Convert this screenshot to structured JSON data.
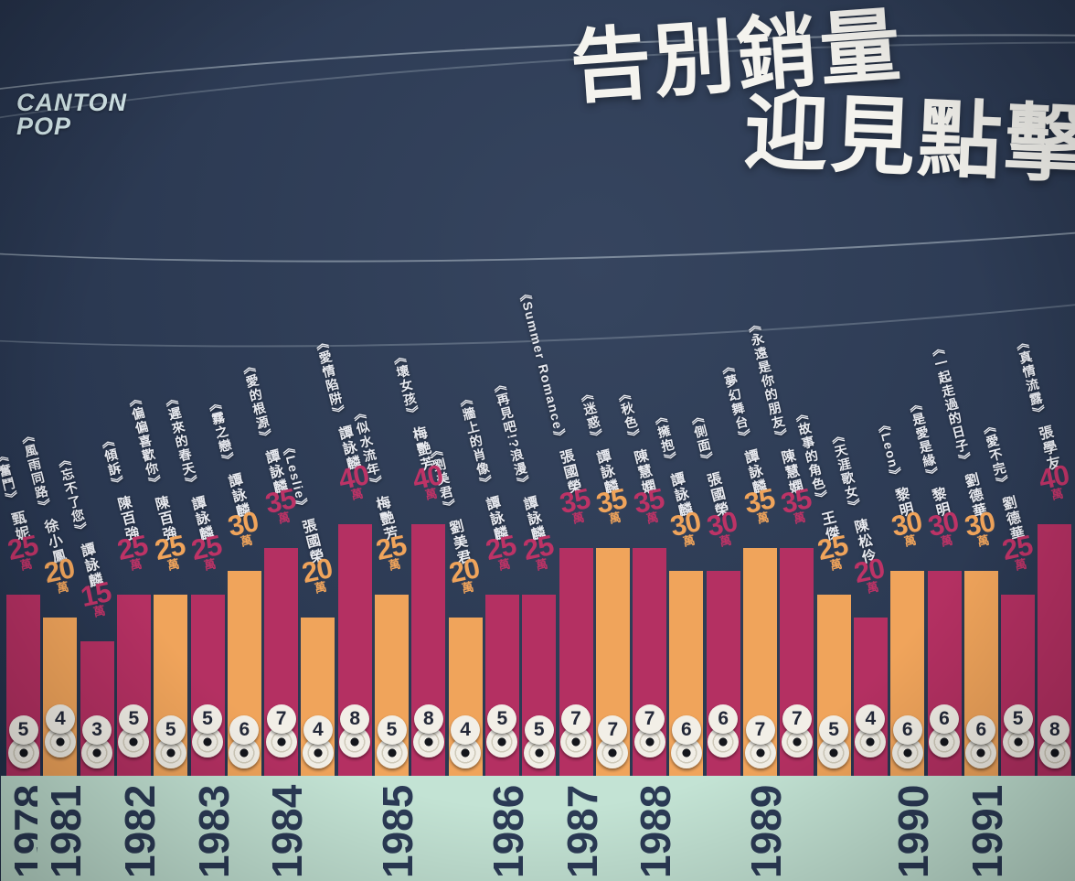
{
  "logo": {
    "line1": "CANTON",
    "line2": "POP"
  },
  "title": {
    "line1": "告別銷量",
    "line2": "迎見點擊"
  },
  "colors": {
    "background": "#2c3a53",
    "bar_magenta": "#b43062",
    "bar_orange": "#f0a45b",
    "timeline_mint": "#c3e3d4",
    "year_text": "#2b3a55",
    "title_text": "#f4f3ee",
    "badge_bg": "#f2efe7",
    "badge_text": "#232838"
  },
  "chart_data": {
    "type": "bar",
    "title": "告別銷量 迎見點擊",
    "logo": "CANTON POP",
    "unit": "萬",
    "ylim": [
      0,
      45
    ],
    "years": [
      1978,
      1981,
      1982,
      1983,
      1984,
      1985,
      1986,
      1987,
      1988,
      1989,
      1990,
      1991
    ],
    "bars": [
      {
        "year": 1978,
        "album": "《奮鬥》",
        "artist": "甄妮",
        "sales_wan": 25,
        "platinum": 5,
        "color": "magenta"
      },
      {
        "year": 1981,
        "album": "《風雨同路》",
        "artist": "徐小鳳",
        "sales_wan": 20,
        "platinum": 4,
        "color": "orange"
      },
      {
        "year": 1981,
        "album": "《忘不了您》",
        "artist": "譚詠麟",
        "sales_wan": 15,
        "platinum": 3,
        "color": "magenta"
      },
      {
        "year": 1982,
        "album": "《傾訴》",
        "artist": "陳百強",
        "sales_wan": 25,
        "platinum": 5,
        "color": "magenta"
      },
      {
        "year": 1982,
        "album": "《偏偏喜歡你》",
        "artist": "陳百強",
        "sales_wan": 25,
        "platinum": 5,
        "color": "orange"
      },
      {
        "year": 1983,
        "album": "《遲來的春天》",
        "artist": "譚詠麟",
        "sales_wan": 25,
        "platinum": 5,
        "color": "magenta"
      },
      {
        "year": 1983,
        "album": "《霧之戀》",
        "artist": "譚詠麟",
        "sales_wan": 30,
        "platinum": 6,
        "color": "orange"
      },
      {
        "year": 1984,
        "album": "《愛的根源》",
        "artist": "譚詠麟",
        "sales_wan": 35,
        "platinum": 7,
        "color": "magenta"
      },
      {
        "year": 1984,
        "album": "《Leslie》",
        "artist": "張國榮",
        "sales_wan": 20,
        "platinum": 4,
        "color": "orange"
      },
      {
        "year": 1984,
        "album": "《愛情陷阱》",
        "artist": "譚詠麟",
        "sales_wan": 40,
        "platinum": 8,
        "color": "magenta"
      },
      {
        "year": 1985,
        "album": "《似水流年》",
        "artist": "梅艷芳",
        "sales_wan": 25,
        "platinum": 5,
        "color": "orange"
      },
      {
        "year": 1985,
        "album": "《壞女孩》",
        "artist": "梅艷芳",
        "sales_wan": 40,
        "platinum": 8,
        "color": "magenta"
      },
      {
        "year": 1985,
        "album": "《劉美君》",
        "artist": "劉美君",
        "sales_wan": 20,
        "platinum": 4,
        "color": "orange"
      },
      {
        "year": 1986,
        "album": "《牆上的肖像》",
        "artist": "譚詠麟",
        "sales_wan": 25,
        "platinum": 5,
        "color": "magenta"
      },
      {
        "year": 1986,
        "album": "《再見吧!?浪漫》",
        "artist": "譚詠麟",
        "sales_wan": 25,
        "platinum": 5,
        "color": "magenta"
      },
      {
        "year": 1987,
        "album": "《Summer Romance》",
        "artist": "張國榮",
        "sales_wan": 35,
        "platinum": 7,
        "color": "magenta"
      },
      {
        "year": 1987,
        "album": "《迷惑》",
        "artist": "譚詠麟",
        "sales_wan": 35,
        "platinum": 7,
        "color": "orange"
      },
      {
        "year": 1988,
        "album": "《秋色》",
        "artist": "陳慧嫻",
        "sales_wan": 35,
        "platinum": 7,
        "color": "magenta"
      },
      {
        "year": 1988,
        "album": "《擁抱》",
        "artist": "譚詠麟",
        "sales_wan": 30,
        "platinum": 6,
        "color": "orange"
      },
      {
        "year": 1988,
        "album": "《側面》",
        "artist": "張國榮",
        "sales_wan": 30,
        "platinum": 6,
        "color": "magenta"
      },
      {
        "year": 1989,
        "album": "《夢幻舞台》",
        "artist": "譚詠麟",
        "sales_wan": 35,
        "platinum": 7,
        "color": "orange"
      },
      {
        "year": 1989,
        "album": "《永遠是你的朋友》",
        "artist": "陳慧嫻",
        "sales_wan": 35,
        "platinum": 7,
        "color": "magenta"
      },
      {
        "year": 1989,
        "album": "《故事的角色》",
        "artist": "王傑",
        "sales_wan": 25,
        "platinum": 5,
        "color": "orange"
      },
      {
        "year": 1989,
        "album": "《天涯歌女》",
        "artist": "陳松伶",
        "sales_wan": 20,
        "platinum": 4,
        "color": "magenta"
      },
      {
        "year": 1990,
        "album": "《Leon》",
        "artist": "黎明",
        "sales_wan": 30,
        "platinum": 6,
        "color": "orange"
      },
      {
        "year": 1990,
        "album": "《是愛是緣》",
        "artist": "黎明",
        "sales_wan": 30,
        "platinum": 6,
        "color": "magenta"
      },
      {
        "year": 1991,
        "album": "《一起走過的日子》",
        "artist": "劉德華",
        "sales_wan": 30,
        "platinum": 6,
        "color": "orange"
      },
      {
        "year": 1991,
        "album": "《愛不完》",
        "artist": "劉德華",
        "sales_wan": 25,
        "platinum": 5,
        "color": "magenta"
      },
      {
        "year": 1991,
        "album": "《真情流露》",
        "artist": "張學友",
        "sales_wan": 40,
        "platinum": 8,
        "color": "magenta"
      }
    ]
  }
}
